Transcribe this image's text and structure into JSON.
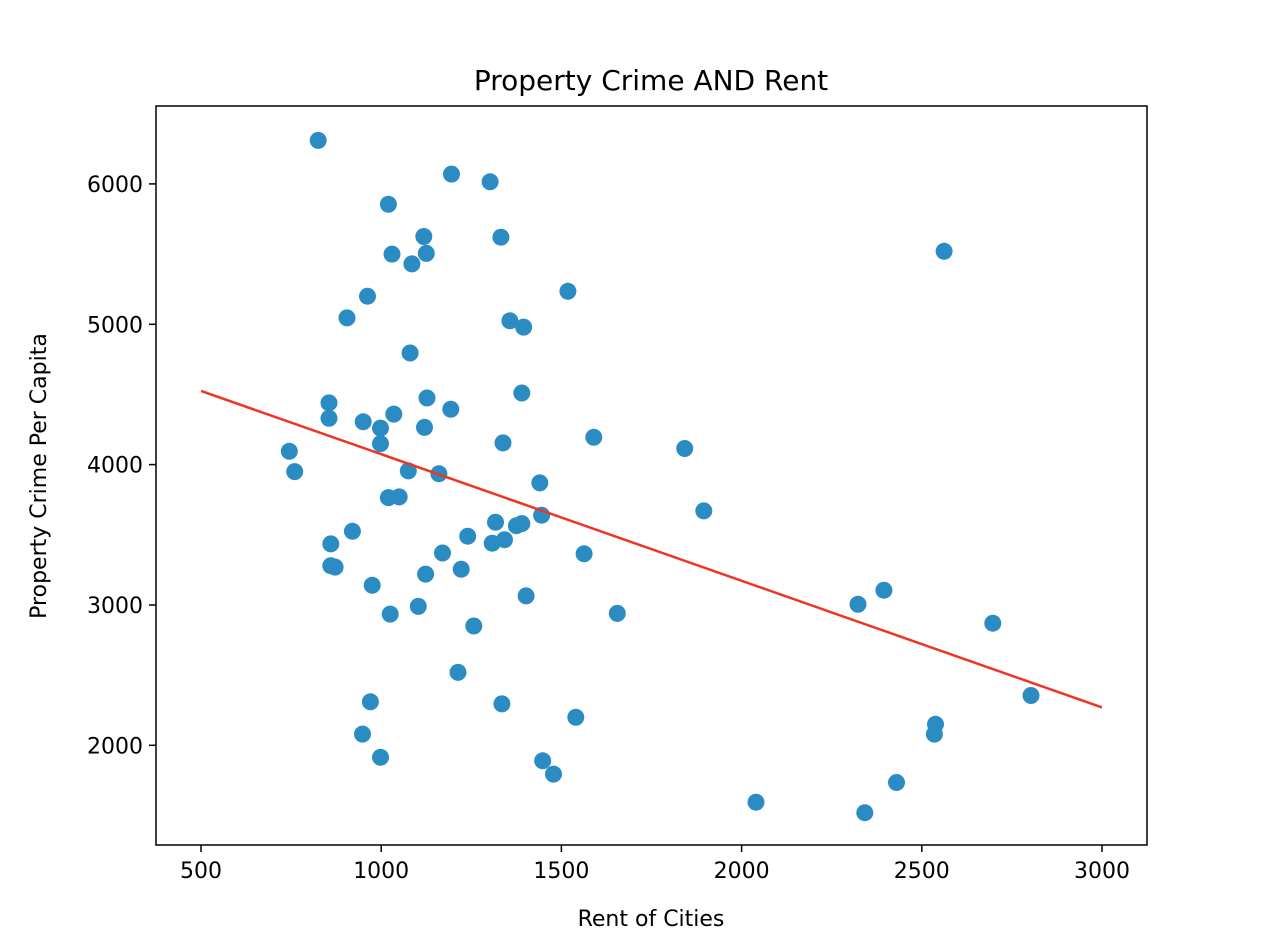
{
  "chart_data": {
    "type": "scatter",
    "title": "Property Crime AND Rent",
    "xlabel": "Rent of Cities",
    "ylabel": "Property Crime Per Capita",
    "xlim": [
      375,
      3125
    ],
    "ylim": [
      1290,
      6555
    ],
    "xticks": [
      500,
      1000,
      1500,
      2000,
      2500,
      3000
    ],
    "yticks": [
      2000,
      3000,
      4000,
      5000,
      6000
    ],
    "grid": false,
    "legend": "none",
    "colors": {
      "points": "#2b8cc4",
      "trend": "#ee3524"
    },
    "series": [
      {
        "points": [
          [
            825,
            6310
          ],
          [
            1195,
            6070
          ],
          [
            1302,
            6015
          ],
          [
            1020,
            5855
          ],
          [
            1118,
            5625
          ],
          [
            1332,
            5620
          ],
          [
            1030,
            5500
          ],
          [
            1125,
            5505
          ],
          [
            1085,
            5430
          ],
          [
            2562,
            5520
          ],
          [
            962,
            5200
          ],
          [
            1518,
            5235
          ],
          [
            905,
            5045
          ],
          [
            1357,
            5025
          ],
          [
            1395,
            4980
          ],
          [
            1080,
            4795
          ],
          [
            855,
            4440
          ],
          [
            1127,
            4475
          ],
          [
            1193,
            4395
          ],
          [
            1390,
            4510
          ],
          [
            855,
            4330
          ],
          [
            950,
            4305
          ],
          [
            1035,
            4360
          ],
          [
            998,
            4260
          ],
          [
            1120,
            4265
          ],
          [
            998,
            4150
          ],
          [
            1338,
            4155
          ],
          [
            1590,
            4195
          ],
          [
            1842,
            4115
          ],
          [
            745,
            4095
          ],
          [
            760,
            3950
          ],
          [
            1075,
            3955
          ],
          [
            1160,
            3935
          ],
          [
            1440,
            3870
          ],
          [
            1020,
            3765
          ],
          [
            1050,
            3770
          ],
          [
            1445,
            3640
          ],
          [
            1895,
            3670
          ],
          [
            1317,
            3590
          ],
          [
            1375,
            3565
          ],
          [
            1390,
            3580
          ],
          [
            920,
            3525
          ],
          [
            1240,
            3490
          ],
          [
            1308,
            3440
          ],
          [
            1342,
            3465
          ],
          [
            860,
            3435
          ],
          [
            1170,
            3370
          ],
          [
            1563,
            3365
          ],
          [
            860,
            3280
          ],
          [
            872,
            3270
          ],
          [
            1222,
            3255
          ],
          [
            1123,
            3220
          ],
          [
            975,
            3140
          ],
          [
            1402,
            3065
          ],
          [
            2395,
            3105
          ],
          [
            2323,
            3005
          ],
          [
            1103,
            2990
          ],
          [
            1025,
            2935
          ],
          [
            1655,
            2940
          ],
          [
            1257,
            2850
          ],
          [
            2697,
            2870
          ],
          [
            1213,
            2520
          ],
          [
            2803,
            2355
          ],
          [
            970,
            2310
          ],
          [
            1335,
            2295
          ],
          [
            1540,
            2200
          ],
          [
            2538,
            2150
          ],
          [
            2535,
            2080
          ],
          [
            948,
            2080
          ],
          [
            998,
            1915
          ],
          [
            1448,
            1890
          ],
          [
            1478,
            1795
          ],
          [
            2430,
            1735
          ],
          [
            2040,
            1595
          ],
          [
            2342,
            1520
          ]
        ]
      }
    ],
    "trendline": {
      "x": [
        500,
        3000
      ],
      "y": [
        4525,
        2270
      ]
    }
  }
}
